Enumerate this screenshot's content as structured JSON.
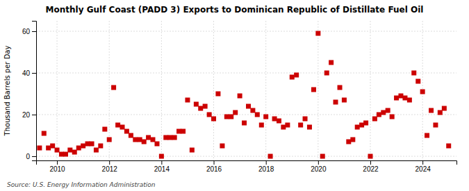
{
  "chart_data": {
    "type": "scatter",
    "title": "Monthly Gulf Coast (PADD 3) Exports to Dominican Republic of Distillate Fuel Oil",
    "y_label": "Thousand Barrels per Day",
    "annotations": [
      "Source: U.S. Energy Information Administration"
    ],
    "color": "#cc0000",
    "marker": "square",
    "grid": true,
    "xlim": [
      2009.2,
      2025.3
    ],
    "ylim": [
      -2,
      65
    ],
    "xticks": [
      2010,
      2012,
      2014,
      2016,
      2018,
      2020,
      2022,
      2024
    ],
    "yticks": [
      0,
      20,
      40,
      60
    ],
    "x": [
      2009.33,
      2009.5,
      2009.67,
      2009.83,
      2010.0,
      2010.17,
      2010.33,
      2010.5,
      2010.67,
      2010.83,
      2011.0,
      2011.17,
      2011.33,
      2011.5,
      2011.67,
      2011.83,
      2012.0,
      2012.17,
      2012.33,
      2012.5,
      2012.67,
      2012.83,
      2013.0,
      2013.17,
      2013.33,
      2013.5,
      2013.67,
      2013.83,
      2014.0,
      2014.17,
      2014.33,
      2014.5,
      2014.67,
      2014.83,
      2015.0,
      2015.17,
      2015.33,
      2015.5,
      2015.67,
      2015.83,
      2016.0,
      2016.17,
      2016.33,
      2016.5,
      2016.67,
      2016.83,
      2017.0,
      2017.17,
      2017.33,
      2017.5,
      2017.67,
      2017.83,
      2018.0,
      2018.17,
      2018.33,
      2018.5,
      2018.67,
      2018.83,
      2019.0,
      2019.17,
      2019.33,
      2019.5,
      2019.67,
      2019.83,
      2020.0,
      2020.17,
      2020.33,
      2020.5,
      2020.67,
      2020.83,
      2021.0,
      2021.17,
      2021.33,
      2021.5,
      2021.67,
      2021.83,
      2022.0,
      2022.17,
      2022.33,
      2022.5,
      2022.67,
      2022.83,
      2023.0,
      2023.17,
      2023.33,
      2023.5,
      2023.67,
      2023.83,
      2024.0,
      2024.17,
      2024.33,
      2024.5,
      2024.67,
      2024.83,
      2025.0
    ],
    "values": [
      4,
      11,
      4,
      5,
      3,
      1,
      1,
      3,
      2,
      4,
      5,
      6,
      6,
      3,
      5,
      13,
      8,
      33,
      15,
      14,
      12,
      10,
      8,
      8,
      7,
      9,
      8,
      6,
      0,
      9,
      9,
      9,
      12,
      12,
      27,
      3,
      25,
      23,
      24,
      20,
      18,
      30,
      5,
      19,
      19,
      21,
      29,
      16,
      24,
      22,
      20,
      15,
      19,
      0,
      18,
      17,
      14,
      15,
      38,
      39,
      15,
      18,
      14,
      32,
      59,
      0,
      40,
      45,
      26,
      33,
      27,
      7,
      8,
      14,
      15,
      16,
      0,
      18,
      20,
      21,
      22,
      19,
      28,
      29,
      28,
      27,
      40,
      36,
      31,
      10,
      22,
      15,
      21,
      23,
      5
    ]
  }
}
